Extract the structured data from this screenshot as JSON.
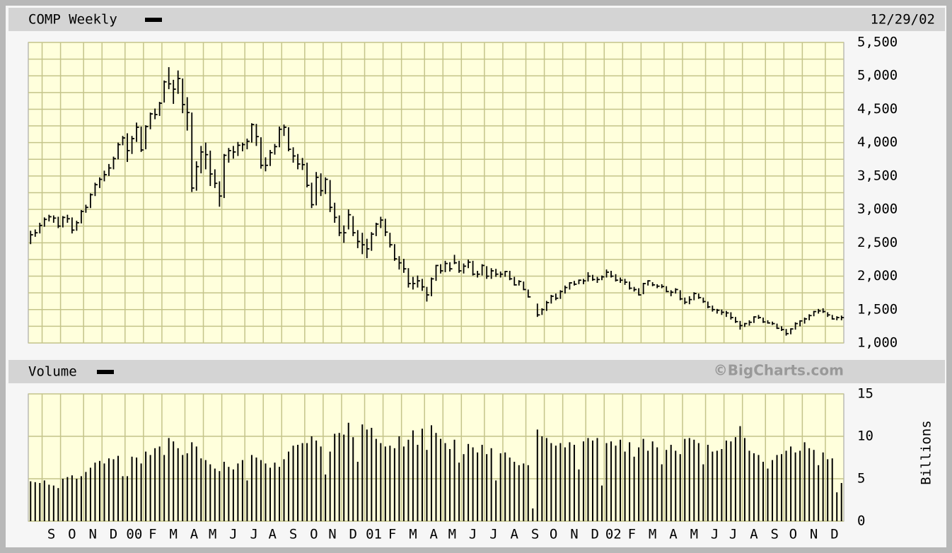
{
  "chart_data": [
    {
      "type": "ohlc",
      "date": "12/29/02",
      "series": [
        {
          "name": "COMP Weekly",
          "color": "#000000",
          "values": [
            2620,
            2650,
            2760,
            2850,
            2890,
            2870,
            2750,
            2880,
            2860,
            2690,
            2800,
            2970,
            3030,
            3220,
            3370,
            3450,
            3520,
            3620,
            3760,
            3970,
            4070,
            3880,
            4060,
            4230,
            3890,
            4240,
            4430,
            4420,
            4590,
            4910,
            4880,
            4800,
            4960,
            4570,
            4450,
            3320,
            3640,
            3860,
            3820,
            3530,
            3390,
            3200,
            3810,
            3880,
            3860,
            3960,
            3970,
            4020,
            4270,
            4090,
            3660,
            3660,
            3850,
            3940,
            4200,
            4230,
            3900,
            3800,
            3680,
            3670,
            3360,
            3070,
            3480,
            3280,
            3450,
            3030,
            2880,
            2650,
            2650,
            2920,
            2650,
            2520,
            2470,
            2410,
            2630,
            2780,
            2840,
            2660,
            2470,
            2260,
            2200,
            2110,
            1890,
            1890,
            1930,
            1840,
            1720,
            1960,
            2160,
            2080,
            2190,
            2110,
            2200,
            2080,
            2150,
            2210,
            2030,
            2030,
            2160,
            2000,
            2080,
            2030,
            2030,
            2070,
            1960,
            1870,
            1920,
            1800,
            1690,
            null,
            1420,
            1500,
            1605,
            1700,
            1670,
            1770,
            1830,
            1900,
            1880,
            1940,
            1930,
            2000,
            1950,
            1950,
            1990,
            2060,
            2000,
            1940,
            1940,
            1910,
            1820,
            1800,
            1720,
            1890,
            1930,
            1870,
            1850,
            1845,
            1770,
            1760,
            1800,
            1660,
            1610,
            1650,
            1740,
            1680,
            1620,
            1540,
            1500,
            1490,
            1460,
            1450,
            1380,
            1320,
            1260,
            1290,
            1310,
            1390,
            1380,
            1315,
            1300,
            1290,
            1220,
            1200,
            1140,
            1210,
            1290,
            1330,
            1360,
            1410,
            1470,
            1480,
            1470,
            1420,
            1360,
            1380,
            1380
          ],
          "high": [
            2680,
            2700,
            2800,
            2880,
            2920,
            2910,
            2890,
            2900,
            2920,
            2880,
            2830,
            2990,
            3070,
            3240,
            3400,
            3480,
            3580,
            3680,
            3790,
            4000,
            4100,
            4140,
            4100,
            4300,
            4240,
            4260,
            4450,
            4510,
            4610,
            4930,
            5130,
            4940,
            5080,
            4960,
            4680,
            4450,
            3720,
            3950,
            4000,
            3880,
            3600,
            3420,
            3830,
            3920,
            3950,
            4010,
            4000,
            4060,
            4290,
            4280,
            4080,
            3780,
            3890,
            3980,
            4240,
            4270,
            4230,
            3930,
            3830,
            3770,
            3700,
            3400,
            3560,
            3540,
            3480,
            3440,
            3100,
            2910,
            2760,
            3000,
            2900,
            2690,
            2650,
            2560,
            2660,
            2800,
            2890,
            2860,
            2650,
            2480,
            2300,
            2260,
            2120,
            1990,
            2010,
            1960,
            1840,
            1980,
            2170,
            2180,
            2230,
            2210,
            2320,
            2230,
            2190,
            2250,
            2230,
            2080,
            2180,
            2150,
            2120,
            2110,
            2070,
            2080,
            2080,
            1990,
            1940,
            1920,
            1800,
            null,
            1590,
            1520,
            1630,
            1720,
            1740,
            1790,
            1860,
            1910,
            1930,
            1950,
            1960,
            2060,
            2020,
            1990,
            2010,
            2100,
            2080,
            2030,
            1980,
            1960,
            1920,
            1840,
            1820,
            1900,
            1940,
            1910,
            1880,
            1880,
            1850,
            1790,
            1820,
            1790,
            1680,
            1700,
            1760,
            1740,
            1680,
            1620,
            1560,
            1510,
            1500,
            1480,
            1460,
            1390,
            1330,
            1300,
            1340,
            1400,
            1420,
            1380,
            1340,
            1320,
            1290,
            1250,
            1210,
            1220,
            1310,
            1340,
            1380,
            1430,
            1480,
            1510,
            1520,
            1460,
            1420,
            1400,
            1410
          ],
          "low": [
            2480,
            2590,
            2640,
            2740,
            2820,
            2800,
            2720,
            2730,
            2800,
            2640,
            2680,
            2790,
            2950,
            3020,
            3200,
            3320,
            3420,
            3500,
            3600,
            3750,
            3960,
            3710,
            3830,
            4010,
            3860,
            3900,
            4200,
            4350,
            4400,
            4600,
            4800,
            4580,
            4730,
            4440,
            4180,
            3260,
            3280,
            3540,
            3600,
            3350,
            3320,
            3040,
            3170,
            3700,
            3760,
            3800,
            3870,
            3900,
            4000,
            3950,
            3610,
            3570,
            3650,
            3820,
            3930,
            4100,
            3870,
            3700,
            3600,
            3590,
            3330,
            3020,
            3060,
            3200,
            3230,
            2960,
            2800,
            2600,
            2500,
            2700,
            2600,
            2420,
            2330,
            2270,
            2380,
            2600,
            2720,
            2600,
            2430,
            2230,
            2100,
            2050,
            1830,
            1800,
            1830,
            1780,
            1620,
            1700,
            1930,
            2040,
            2060,
            2070,
            2180,
            2050,
            2040,
            2120,
            2010,
            1980,
            2010,
            1960,
            1960,
            1990,
            1980,
            1990,
            1940,
            1860,
            1860,
            1790,
            1680,
            null,
            1390,
            1420,
            1480,
            1590,
            1640,
            1660,
            1740,
            1800,
            1860,
            1880,
            1880,
            1920,
            1930,
            1900,
            1940,
            1980,
            1980,
            1920,
            1900,
            1870,
            1800,
            1770,
            1710,
            1730,
            1860,
            1850,
            1820,
            1820,
            1760,
            1700,
            1740,
            1640,
            1580,
            1580,
            1640,
            1660,
            1600,
            1520,
            1470,
            1440,
            1420,
            1390,
            1350,
            1300,
            1200,
            1240,
            1260,
            1300,
            1360,
            1300,
            1290,
            1270,
            1210,
            1180,
            1110,
            1130,
            1200,
            1250,
            1290,
            1340,
            1400,
            1440,
            1450,
            1390,
            1350,
            1340,
            1340
          ]
        }
      ],
      "ylim": [
        1000,
        5500
      ],
      "yticks": [
        {
          "value": 1000,
          "label": "1,000"
        },
        {
          "value": 1500,
          "label": "1,500"
        },
        {
          "value": 2000,
          "label": "2,000"
        },
        {
          "value": 2500,
          "label": "2,500"
        },
        {
          "value": 3000,
          "label": "3,000"
        },
        {
          "value": 3500,
          "label": "3,500"
        },
        {
          "value": 4000,
          "label": "4,000"
        },
        {
          "value": 4500,
          "label": "4,500"
        },
        {
          "value": 5000,
          "label": "5,000"
        },
        {
          "value": 5500,
          "label": "5,500"
        }
      ],
      "grid": true
    },
    {
      "type": "bar",
      "ylabel": "Billions",
      "annotation": "©BigCharts.com",
      "categories": [
        null,
        null,
        null,
        "S",
        null,
        null,
        null,
        "O",
        null,
        null,
        null,
        null,
        "N",
        null,
        null,
        null,
        "D",
        null,
        null,
        null,
        null,
        "00",
        null,
        null,
        null,
        "F",
        null,
        null,
        null,
        "M",
        null,
        null,
        null,
        null,
        "A",
        null,
        null,
        null,
        "M",
        null,
        null,
        null,
        "J",
        null,
        null,
        null,
        null,
        "J",
        null,
        null,
        null,
        "A",
        null,
        null,
        null,
        "S",
        null,
        null,
        null,
        null,
        "O",
        null,
        null,
        null,
        "N",
        null,
        null,
        null,
        "D",
        null,
        null,
        null,
        null,
        "01",
        null,
        null,
        null,
        "F",
        null,
        null,
        null,
        "M",
        null,
        null,
        null,
        null,
        "A",
        null,
        null,
        null,
        "M",
        null,
        null,
        null,
        "J",
        null,
        null,
        null,
        null,
        "J",
        null,
        null,
        null,
        "A",
        null,
        null,
        null,
        null,
        "S",
        null,
        null,
        null,
        "O",
        null,
        null,
        null,
        "N",
        null,
        null,
        null,
        null,
        "D",
        null,
        null,
        null,
        "02",
        null,
        null,
        null,
        "F",
        null,
        null,
        null,
        "M",
        null,
        null,
        null,
        null,
        "A",
        null,
        null,
        null,
        "M",
        null,
        null,
        null,
        null,
        "J",
        null,
        null,
        null,
        "J",
        null,
        null,
        null,
        "A",
        null,
        null,
        null,
        null,
        "S",
        null,
        null,
        null,
        "O",
        null,
        null,
        null,
        "N",
        null,
        null,
        null,
        null,
        "D",
        null,
        null,
        null
      ],
      "series": [
        {
          "name": "Volume",
          "color": "#000000",
          "values": [
            4.7,
            4.6,
            4.5,
            4.8,
            4.3,
            4.2,
            3.9,
            5.0,
            5.2,
            5.4,
            5.0,
            5.3,
            5.8,
            6.3,
            6.9,
            7.1,
            6.8,
            7.4,
            7.3,
            7.7,
            5.3,
            5.3,
            7.6,
            7.5,
            6.8,
            8.2,
            7.8,
            8.6,
            8.8,
            7.8,
            9.8,
            9.4,
            8.6,
            7.8,
            8.0,
            9.3,
            8.8,
            7.4,
            7.2,
            6.7,
            6.2,
            5.9,
            7.0,
            6.4,
            6.1,
            6.8,
            7.2,
            4.8,
            7.8,
            7.5,
            7.2,
            6.8,
            6.3,
            6.9,
            6.4,
            7.3,
            8.2,
            8.9,
            9.0,
            9.2,
            9.2,
            10.0,
            9.5,
            8.8,
            5.5,
            8.2,
            10.3,
            10.4,
            10.2,
            11.6,
            9.9,
            7.0,
            11.4,
            10.8,
            11.0,
            9.7,
            9.2,
            8.8,
            8.9,
            8.6,
            10.0,
            8.8,
            9.6,
            10.7,
            9.0,
            10.9,
            8.4,
            11.3,
            10.4,
            9.7,
            9.2,
            8.5,
            9.6,
            6.9,
            7.9,
            9.1,
            8.7,
            8.1,
            9.0,
            7.9,
            8.6,
            4.8,
            8.0,
            8.1,
            7.5,
            7.0,
            6.6,
            6.8,
            6.6,
            1.5,
            10.8,
            10.0,
            9.8,
            9.2,
            8.9,
            9.2,
            8.7,
            9.3,
            9.0,
            6.1,
            9.4,
            9.8,
            9.5,
            9.8,
            4.2,
            9.2,
            9.4,
            8.9,
            9.6,
            8.2,
            9.3,
            7.6,
            8.7,
            9.7,
            8.3,
            9.4,
            8.7,
            6.7,
            8.4,
            9.0,
            8.3,
            7.9,
            9.7,
            9.8,
            9.6,
            9.2,
            6.7,
            9.0,
            8.2,
            8.3,
            8.5,
            9.5,
            9.4,
            9.9,
            11.2,
            9.8,
            8.3,
            8.0,
            7.8,
            7.0,
            6.2,
            7.2,
            7.8,
            7.9,
            8.3,
            8.8,
            8.1,
            8.3,
            9.3,
            8.6,
            8.4,
            6.6,
            8.1,
            7.3,
            7.4,
            3.4,
            4.5
          ]
        }
      ],
      "ylim": [
        0,
        15
      ],
      "yticks": [
        0,
        5,
        10,
        15
      ],
      "grid": true
    }
  ]
}
